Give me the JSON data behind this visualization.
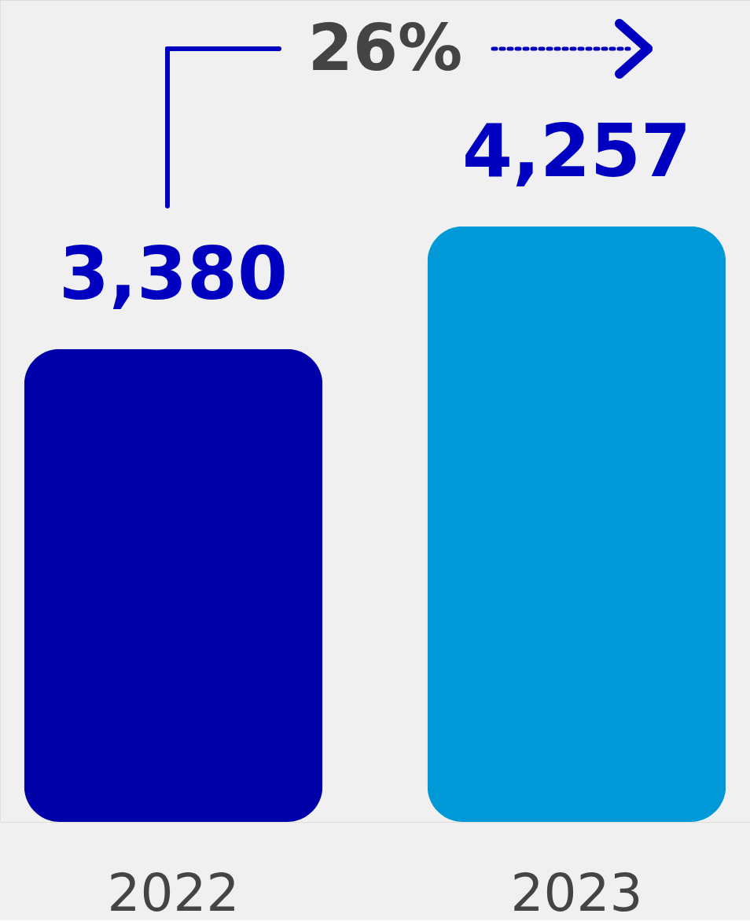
{
  "chart_data": {
    "type": "bar",
    "categories": [
      "2022",
      "2023"
    ],
    "values": [
      3380,
      4257
    ],
    "colors": [
      "#0000a8",
      "#0099d8"
    ],
    "value_labels": [
      "3,380",
      "4,257"
    ],
    "annotations": [
      "26%"
    ]
  }
}
